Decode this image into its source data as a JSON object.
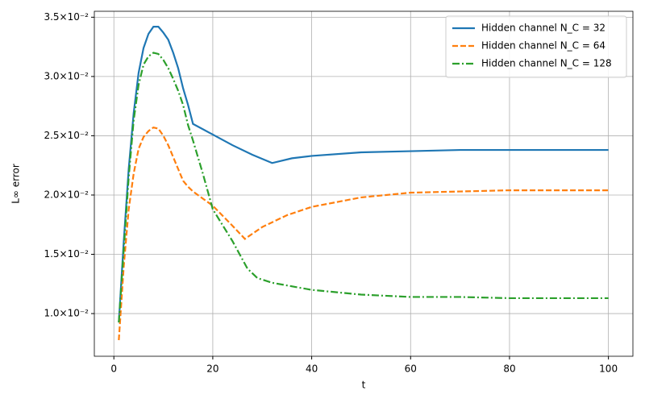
{
  "chart_data": {
    "type": "line",
    "xlabel": "t",
    "ylabel": "L∞ error",
    "xlim": [
      -3.95,
      104.95
    ],
    "ylim": [
      0.0064,
      0.0355
    ],
    "xticks": [
      0,
      20,
      40,
      60,
      80,
      100
    ],
    "yticks": [
      {
        "value": 0.01,
        "label": "1.0×10⁻²"
      },
      {
        "value": 0.015,
        "label": "1.5×10⁻²"
      },
      {
        "value": 0.02,
        "label": "2.0×10⁻²"
      },
      {
        "value": 0.025,
        "label": "2.5×10⁻²"
      },
      {
        "value": 0.03,
        "label": "3.0×10⁻²"
      },
      {
        "value": 0.035,
        "label": "3.5×10⁻²"
      }
    ],
    "grid": true,
    "legend": "upper right",
    "series": [
      {
        "name": "Hidden channel N_C = 32",
        "color": "#1f77b4",
        "linestyle": "solid",
        "x": [
          1,
          2,
          3,
          4,
          5,
          6,
          7,
          8,
          9,
          10,
          11,
          12,
          13,
          14,
          15,
          16,
          20,
          24,
          28,
          32,
          36,
          40,
          50,
          60,
          70,
          80,
          90,
          100
        ],
        "values": [
          0.00925,
          0.0161,
          0.0222,
          0.0269,
          0.0303,
          0.0324,
          0.0336,
          0.0342,
          0.0342,
          0.0337,
          0.0331,
          0.032,
          0.0307,
          0.029,
          0.0276,
          0.026,
          0.0251,
          0.0242,
          0.0234,
          0.0227,
          0.0231,
          0.0233,
          0.0236,
          0.0237,
          0.0238,
          0.0238,
          0.0238,
          0.0238
        ]
      },
      {
        "name": "Hidden channel N_C = 64",
        "color": "#ff7f0e",
        "linestyle": "dashed",
        "x": [
          1,
          2,
          3,
          4,
          5,
          6,
          7,
          8,
          9,
          10,
          11,
          12,
          13,
          14,
          15,
          16,
          20,
          24,
          26.5,
          30,
          35,
          40,
          50,
          60,
          70,
          80,
          90,
          100
        ],
        "values": [
          0.00776,
          0.014,
          0.0188,
          0.0218,
          0.0239,
          0.0249,
          0.0254,
          0.0257,
          0.0256,
          0.025,
          0.0242,
          0.0232,
          0.0222,
          0.0212,
          0.0207,
          0.0203,
          0.0191,
          0.0174,
          0.0163,
          0.0173,
          0.0183,
          0.019,
          0.0198,
          0.0202,
          0.0203,
          0.0204,
          0.0204,
          0.0204
        ]
      },
      {
        "name": "Hidden channel N_C = 128",
        "color": "#2ca02c",
        "linestyle": "dashdot",
        "x": [
          1,
          2,
          3,
          4,
          5,
          6,
          7,
          8,
          9,
          10,
          11,
          12,
          13,
          14,
          15,
          16,
          18,
          20,
          24,
          27,
          29,
          32,
          40,
          50,
          60,
          70,
          80,
          90,
          100
        ],
        "values": [
          0.00925,
          0.0154,
          0.0215,
          0.0263,
          0.0293,
          0.031,
          0.0317,
          0.032,
          0.0319,
          0.0314,
          0.0307,
          0.0298,
          0.0288,
          0.0276,
          0.0259,
          0.0246,
          0.0218,
          0.0188,
          0.0161,
          0.0138,
          0.013,
          0.0126,
          0.012,
          0.0116,
          0.0114,
          0.0114,
          0.0113,
          0.0113,
          0.0113
        ]
      }
    ]
  }
}
